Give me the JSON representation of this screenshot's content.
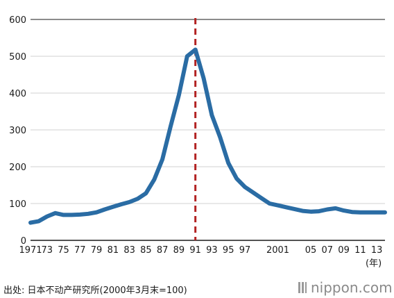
{
  "chart_data": {
    "type": "line",
    "x": [
      1971,
      1972,
      1973,
      1974,
      1975,
      1976,
      1977,
      1978,
      1979,
      1980,
      1981,
      1982,
      1983,
      1984,
      1985,
      1986,
      1987,
      1988,
      1989,
      1990,
      1991,
      1992,
      1993,
      1994,
      1995,
      1996,
      1997,
      1998,
      1999,
      2000,
      2001,
      2002,
      2003,
      2004,
      2005,
      2006,
      2007,
      2008,
      2009,
      2010,
      2011,
      2012,
      2013,
      2014
    ],
    "series": [
      {
        "values": [
          48,
          52,
          65,
          74,
          69,
          69,
          70,
          72,
          76,
          84,
          91,
          98,
          104,
          113,
          128,
          165,
          220,
          310,
          395,
          500,
          518,
          440,
          340,
          280,
          210,
          168,
          145,
          130,
          115,
          100,
          95,
          90,
          85,
          80,
          78,
          79,
          84,
          87,
          81,
          77,
          76,
          76,
          76,
          76
        ]
      }
    ],
    "xticks": [
      "1971",
      "73",
      "75",
      "77",
      "79",
      "81",
      "83",
      "85",
      "87",
      "89",
      "91",
      "93",
      "95",
      "97",
      "2001",
      "05",
      "07",
      "09",
      "11",
      "13"
    ],
    "xtick_values": [
      1971,
      1973,
      1975,
      1977,
      1979,
      1981,
      1983,
      1985,
      1987,
      1989,
      1991,
      1993,
      1995,
      1997,
      2001,
      2005,
      2007,
      2009,
      2011,
      2013
    ],
    "yticks": [
      "0",
      "100",
      "200",
      "300",
      "400",
      "500",
      "600"
    ],
    "ylim": [
      0,
      600
    ],
    "xlim": [
      1971,
      2014
    ],
    "x_unit": "(年)",
    "reference_line": {
      "x": 1991,
      "style": "dashed"
    },
    "grid": "horizontal",
    "title": "",
    "xlabel": "",
    "ylabel": ""
  },
  "colors": {
    "line": "#2a6ca4",
    "reference": "#b22222",
    "grid": "#d0d0d0",
    "axis": "#1a1a1a"
  },
  "source": "出处: 日本不动产研究所(2000年3月末=100)",
  "brand": "nippon.com"
}
